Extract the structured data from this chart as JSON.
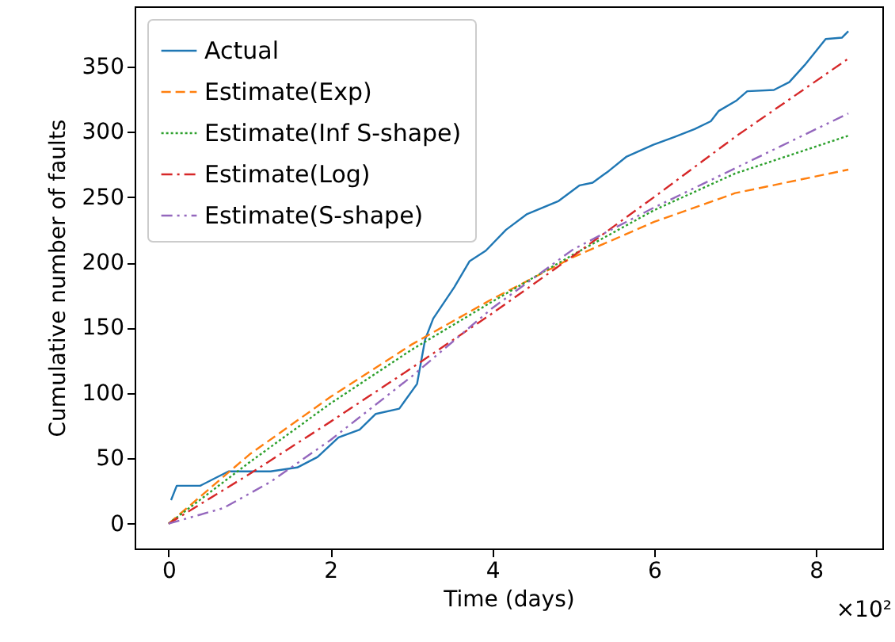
{
  "chart_data": {
    "type": "line",
    "xlabel": "Time (days)",
    "ylabel": "Cumulative number of faults",
    "xlim": [
      -0.42,
      8.82
    ],
    "ylim": [
      -19,
      396
    ],
    "xticks": [
      0,
      2,
      4,
      6,
      8
    ],
    "yticks": [
      0,
      50,
      100,
      150,
      200,
      250,
      300,
      350
    ],
    "grid": false,
    "legend": "top left",
    "marker": "none",
    "annotations": [
      "×10²"
    ],
    "series": [
      {
        "name": "Actual",
        "color": "#1f77b4",
        "line_style": "solid",
        "x": [
          0.03,
          0.1,
          0.39,
          0.58,
          0.74,
          1.26,
          1.59,
          1.84,
          2.1,
          2.36,
          2.56,
          2.85,
          3.07,
          3.17,
          3.27,
          3.53,
          3.72,
          3.92,
          4.17,
          4.43,
          4.82,
          5.08,
          5.24,
          5.44,
          5.66,
          5.99,
          6.25,
          6.5,
          6.7,
          6.8,
          7.02,
          7.15,
          7.48,
          7.67,
          7.86,
          8.12,
          8.32,
          8.4
        ],
        "values": [
          18,
          29,
          29,
          35,
          40,
          40,
          43,
          51,
          66,
          72,
          84,
          88,
          107,
          141,
          157,
          181,
          201,
          209,
          225,
          237,
          247,
          259,
          261,
          270,
          281,
          290,
          296,
          302,
          308,
          316,
          324,
          331,
          332,
          338,
          351,
          371,
          372,
          377
        ]
      },
      {
        "name": "Estimate(Exp)",
        "color": "#ff7f0e",
        "line_style": "dashed",
        "x": [
          0,
          1,
          2,
          3,
          4,
          5,
          6,
          7,
          8.4
        ],
        "values": [
          0,
          53,
          97,
          137,
          172,
          204,
          231,
          253,
          271
        ]
      },
      {
        "name": "Estimate(Inf S-shape)",
        "color": "#2ca02c",
        "line_style": "dotted",
        "x": [
          0,
          1,
          2,
          3,
          4,
          5,
          6,
          7,
          8.4
        ],
        "values": [
          0,
          47,
          92,
          133,
          170,
          206,
          240,
          268,
          297
        ]
      },
      {
        "name": "Estimate(Log)",
        "color": "#d62728",
        "line_style": "dashdot",
        "x": [
          0,
          1,
          2,
          3,
          4,
          5,
          6,
          7,
          8.4
        ],
        "values": [
          0,
          38,
          78,
          119,
          161,
          205,
          250,
          296,
          356
        ]
      },
      {
        "name": "Estimate(S-shape)",
        "color": "#9467bd",
        "line_style": "dashdotdot",
        "x": [
          0,
          0.68,
          1.26,
          2,
          3.01,
          4,
          5,
          6,
          7,
          8.4
        ],
        "values": [
          0,
          12,
          32,
          64,
          113,
          165,
          210,
          242,
          272,
          314
        ]
      }
    ]
  }
}
